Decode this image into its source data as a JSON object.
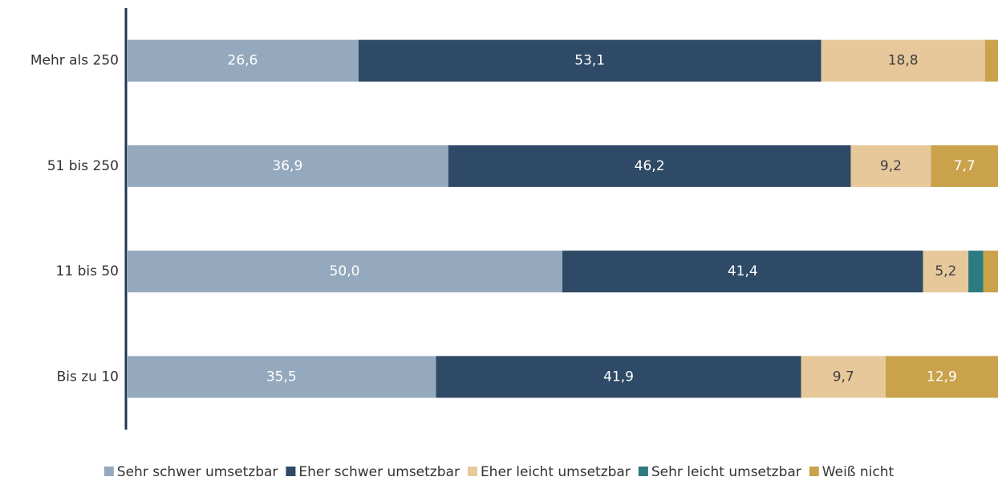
{
  "chart_data": {
    "type": "stacked-barh",
    "categories": [
      "Mehr als 250",
      "51 bis 250",
      "11 bis 50",
      "Bis zu 10"
    ],
    "series": [
      {
        "name": "Sehr schwer umsetzbar",
        "color": "#94a9bd",
        "values": [
          26.6,
          36.9,
          50.0,
          35.5
        ],
        "value_labels": [
          "26,6",
          "36,9",
          "50,0",
          "35,5"
        ]
      },
      {
        "name": "Eher schwer umsetzbar",
        "color": "#2e4a66",
        "values": [
          53.1,
          46.2,
          41.4,
          41.9
        ],
        "value_labels": [
          "53,1",
          "46,2",
          "41,4",
          "41,9"
        ]
      },
      {
        "name": "Eher leicht umsetzbar",
        "color": "#e6c89a",
        "values": [
          18.8,
          9.2,
          5.2,
          9.7
        ],
        "value_labels": [
          "18,8",
          "9,2",
          "5,2",
          "9,7"
        ]
      },
      {
        "name": "Sehr leicht umsetzbar",
        "color": "#2d7a80",
        "values": [
          0,
          0,
          1.7,
          0
        ],
        "value_labels": [
          null,
          null,
          null,
          null
        ]
      },
      {
        "name": "Weiß nicht",
        "color": "#c9a24b",
        "values": [
          1.5,
          7.7,
          1.7,
          12.9
        ],
        "value_labels": [
          null,
          "7,7",
          null,
          "12,9"
        ]
      }
    ],
    "xlim": [
      0,
      100
    ],
    "legend": "bottom"
  }
}
